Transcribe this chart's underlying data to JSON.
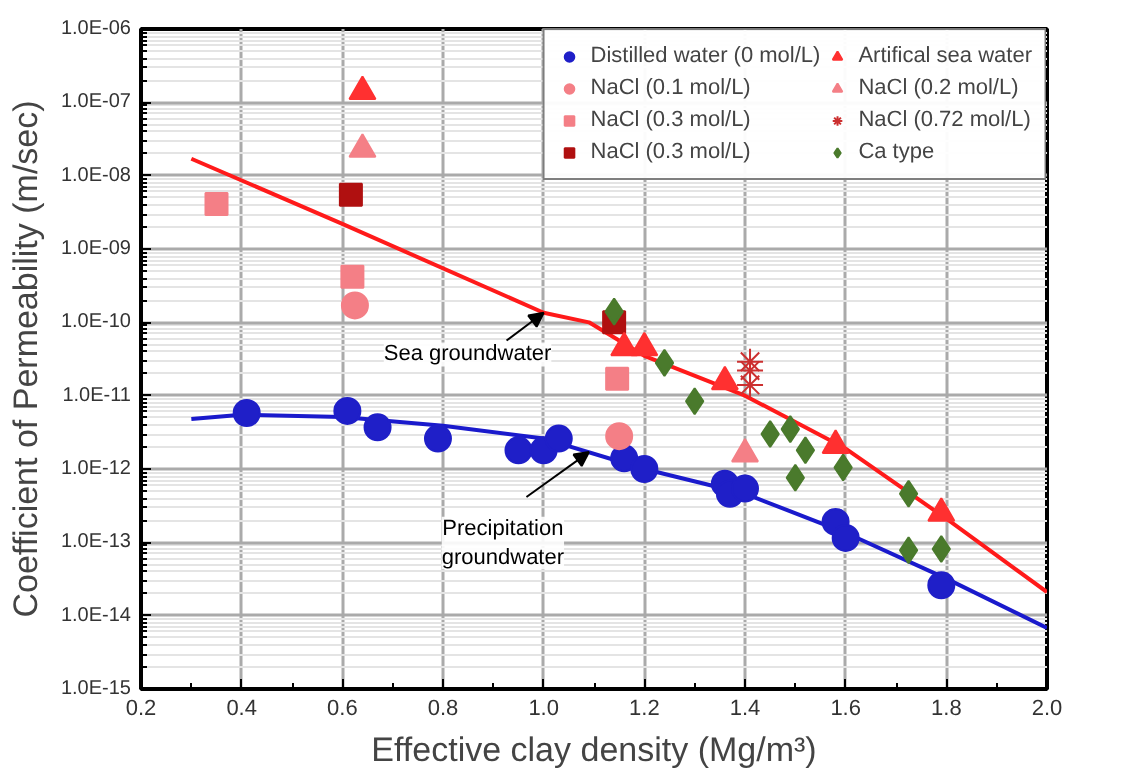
{
  "chart_data": {
    "type": "scatter",
    "xlabel": "Effective clay density (Mg/m³)",
    "ylabel": "Coefficient of Permeability (m/sec)",
    "log": "y",
    "grid": true,
    "legend": "top right",
    "xlim": [
      0.2,
      2.0
    ],
    "xticks": [
      {
        "value": 0.2,
        "label": "0.2"
      },
      {
        "value": 0.4,
        "label": "0.4"
      },
      {
        "value": 0.6,
        "label": "0.6"
      },
      {
        "value": 0.8,
        "label": "0.8"
      },
      {
        "value": 1.0,
        "label": "1.0"
      },
      {
        "value": 1.2,
        "label": "1.2"
      },
      {
        "value": 1.4,
        "label": "1.4"
      },
      {
        "value": 1.6,
        "label": "1.6"
      },
      {
        "value": 1.8,
        "label": "1.8"
      },
      {
        "value": 2.0,
        "label": "2.0"
      }
    ],
    "ylim": [
      1e-15,
      1e-06
    ],
    "yticks": [
      {
        "value": 1e-15,
        "label": "1.0E-15"
      },
      {
        "value": 1e-14,
        "label": "1.0E-14"
      },
      {
        "value": 1e-13,
        "label": "1.0E-13"
      },
      {
        "value": 1e-12,
        "label": "1.0E-12"
      },
      {
        "value": 1e-11,
        "label": "1.0E-11"
      },
      {
        "value": 1e-10,
        "label": "1.0E-10"
      },
      {
        "value": 1e-09,
        "label": "1.0E-09"
      },
      {
        "value": 1e-08,
        "label": "1.0E-08"
      },
      {
        "value": 1e-07,
        "label": "1.0E-07"
      },
      {
        "value": 1e-06,
        "label": "1.0E-06"
      }
    ],
    "annotations": [
      {
        "text": "Sea groundwater",
        "x": 1.0,
        "y": 1.35e-10
      },
      {
        "text": "Precipitation groundwater",
        "x": 1.09,
        "y": 1.7e-12
      }
    ],
    "series": [
      {
        "type": "line",
        "color": "#ff1a1a",
        "x": [
          0.3,
          0.6,
          1.0,
          1.09,
          1.2,
          1.4,
          1.6,
          1.8,
          2.0
        ],
        "values": [
          1.7e-08,
          2.2e-09,
          1.35e-10,
          1e-10,
          3.5e-11,
          1e-11,
          1.9e-12,
          2.1e-13,
          2.1e-14
        ]
      },
      {
        "type": "line",
        "color": "#1a1acc",
        "x": [
          0.3,
          0.4,
          0.6,
          0.8,
          1.0,
          1.2,
          1.4,
          1.6,
          1.8,
          2.0
        ],
        "values": [
          4.8e-12,
          5.5e-12,
          5.1e-12,
          3.9e-12,
          2.6e-12,
          1e-12,
          4.6e-13,
          1.35e-13,
          3.2e-14,
          6.8e-15
        ]
      },
      {
        "name": "Distilled water (0 mol/L)",
        "marker": "circle",
        "color": "#1f1fc8",
        "x": [
          0.41,
          0.61,
          0.67,
          0.79,
          0.95,
          1.0,
          1.03,
          1.16,
          1.2,
          1.36,
          1.37,
          1.4,
          1.58,
          1.6,
          1.79
        ],
        "values": [
          5.8e-12,
          6.2e-12,
          3.7e-12,
          2.6e-12,
          1.8e-12,
          1.8e-12,
          2.6e-12,
          1.4e-12,
          1e-12,
          6.3e-13,
          4.6e-13,
          5.4e-13,
          1.9e-13,
          1.15e-13,
          2.6e-14
        ]
      },
      {
        "name": "NaCl (0.1 mol/L)",
        "marker": "circle",
        "color": "#f47f86",
        "x": [
          0.625,
          1.15
        ],
        "values": [
          1.7e-10,
          2.8e-12
        ]
      },
      {
        "name": "NaCl (0.3 mol/L)",
        "marker": "square",
        "color": "#f47f86",
        "x": [
          0.35,
          0.62,
          1.146
        ],
        "values": [
          4.1e-09,
          4.2e-10,
          1.7e-11
        ]
      },
      {
        "name": "NaCl (0.3 mol/L)",
        "marker": "square",
        "color": "#b01010",
        "x": [
          0.617,
          1.14
        ],
        "values": [
          5.5e-09,
          1e-10
        ]
      },
      {
        "name": "Artifical sea water",
        "marker": "triangle",
        "color": "#ff3030",
        "x": [
          0.64,
          1.16,
          1.2,
          1.36,
          1.58,
          1.79
        ],
        "values": [
          1.4e-07,
          4.5e-11,
          4.5e-11,
          1.55e-11,
          2.1e-12,
          2.5e-13
        ]
      },
      {
        "name": "NaCl (0.2 mol/L)",
        "marker": "triangle",
        "color": "#f47f86",
        "x": [
          0.64,
          1.4
        ],
        "values": [
          2.3e-08,
          1.6e-12
        ]
      },
      {
        "name": "NaCl (0.72 mol/L)",
        "marker": "cross",
        "color": "#cc3030",
        "x": [
          1.41,
          1.41,
          1.41
        ],
        "values": [
          2.9e-11,
          2.2e-11,
          1.4e-11
        ]
      },
      {
        "name": "Ca type",
        "marker": "diamond",
        "color": "#4a7a2c",
        "x": [
          1.14,
          1.24,
          1.3,
          1.45,
          1.49,
          1.52,
          1.5,
          1.595,
          1.725,
          1.725,
          1.79
        ],
        "values": [
          1.4e-10,
          2.8e-11,
          8.4e-12,
          3e-12,
          3.5e-12,
          1.8e-12,
          7.6e-13,
          1.05e-12,
          4.6e-13,
          7.8e-14,
          8.1e-14
        ]
      }
    ]
  }
}
